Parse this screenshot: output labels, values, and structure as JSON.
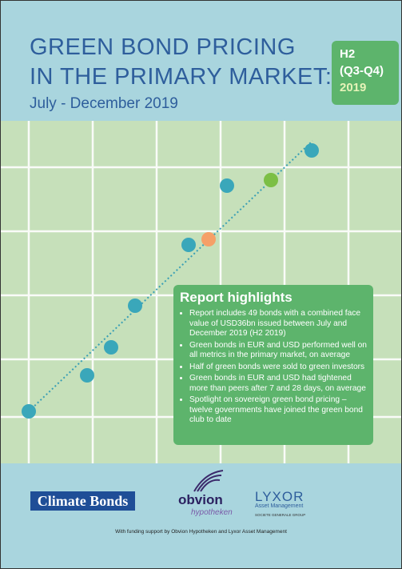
{
  "header": {
    "title": [
      "GREEN BOND PRICING",
      "IN THE PRIMARY MARKET:"
    ],
    "subtitle": "July - December 2019"
  },
  "badge": {
    "lines": [
      "H2",
      "(Q3-Q4)"
    ],
    "year": "2019"
  },
  "highlights": {
    "title": "Report highlights",
    "items": [
      "Report includes 49 bonds with a combined face value of USD36bn issued between July and December 2019 (H2 2019)",
      "Green bonds in EUR and USD performed well on all metrics in the primary market, on average",
      "Half of green bonds were sold to green investors",
      "Green bonds in EUR and USD had tightened more than peers after 7 and 28 days, on average",
      "Spotlight on sovereign green bond pricing – twelve governments have joined the green bond club to date"
    ]
  },
  "logos": {
    "climate_bonds": "Climate Bonds",
    "obvion": "obvion",
    "obvion_sub": "hypotheken",
    "lyxor": "LYXOR",
    "lyxor_sub": "Asset Management",
    "lyxor_group": "SOCIETE GENERALE GROUP"
  },
  "footer": "With funding support by Obvion Hypotheken and Lyxor Asset Management"
}
